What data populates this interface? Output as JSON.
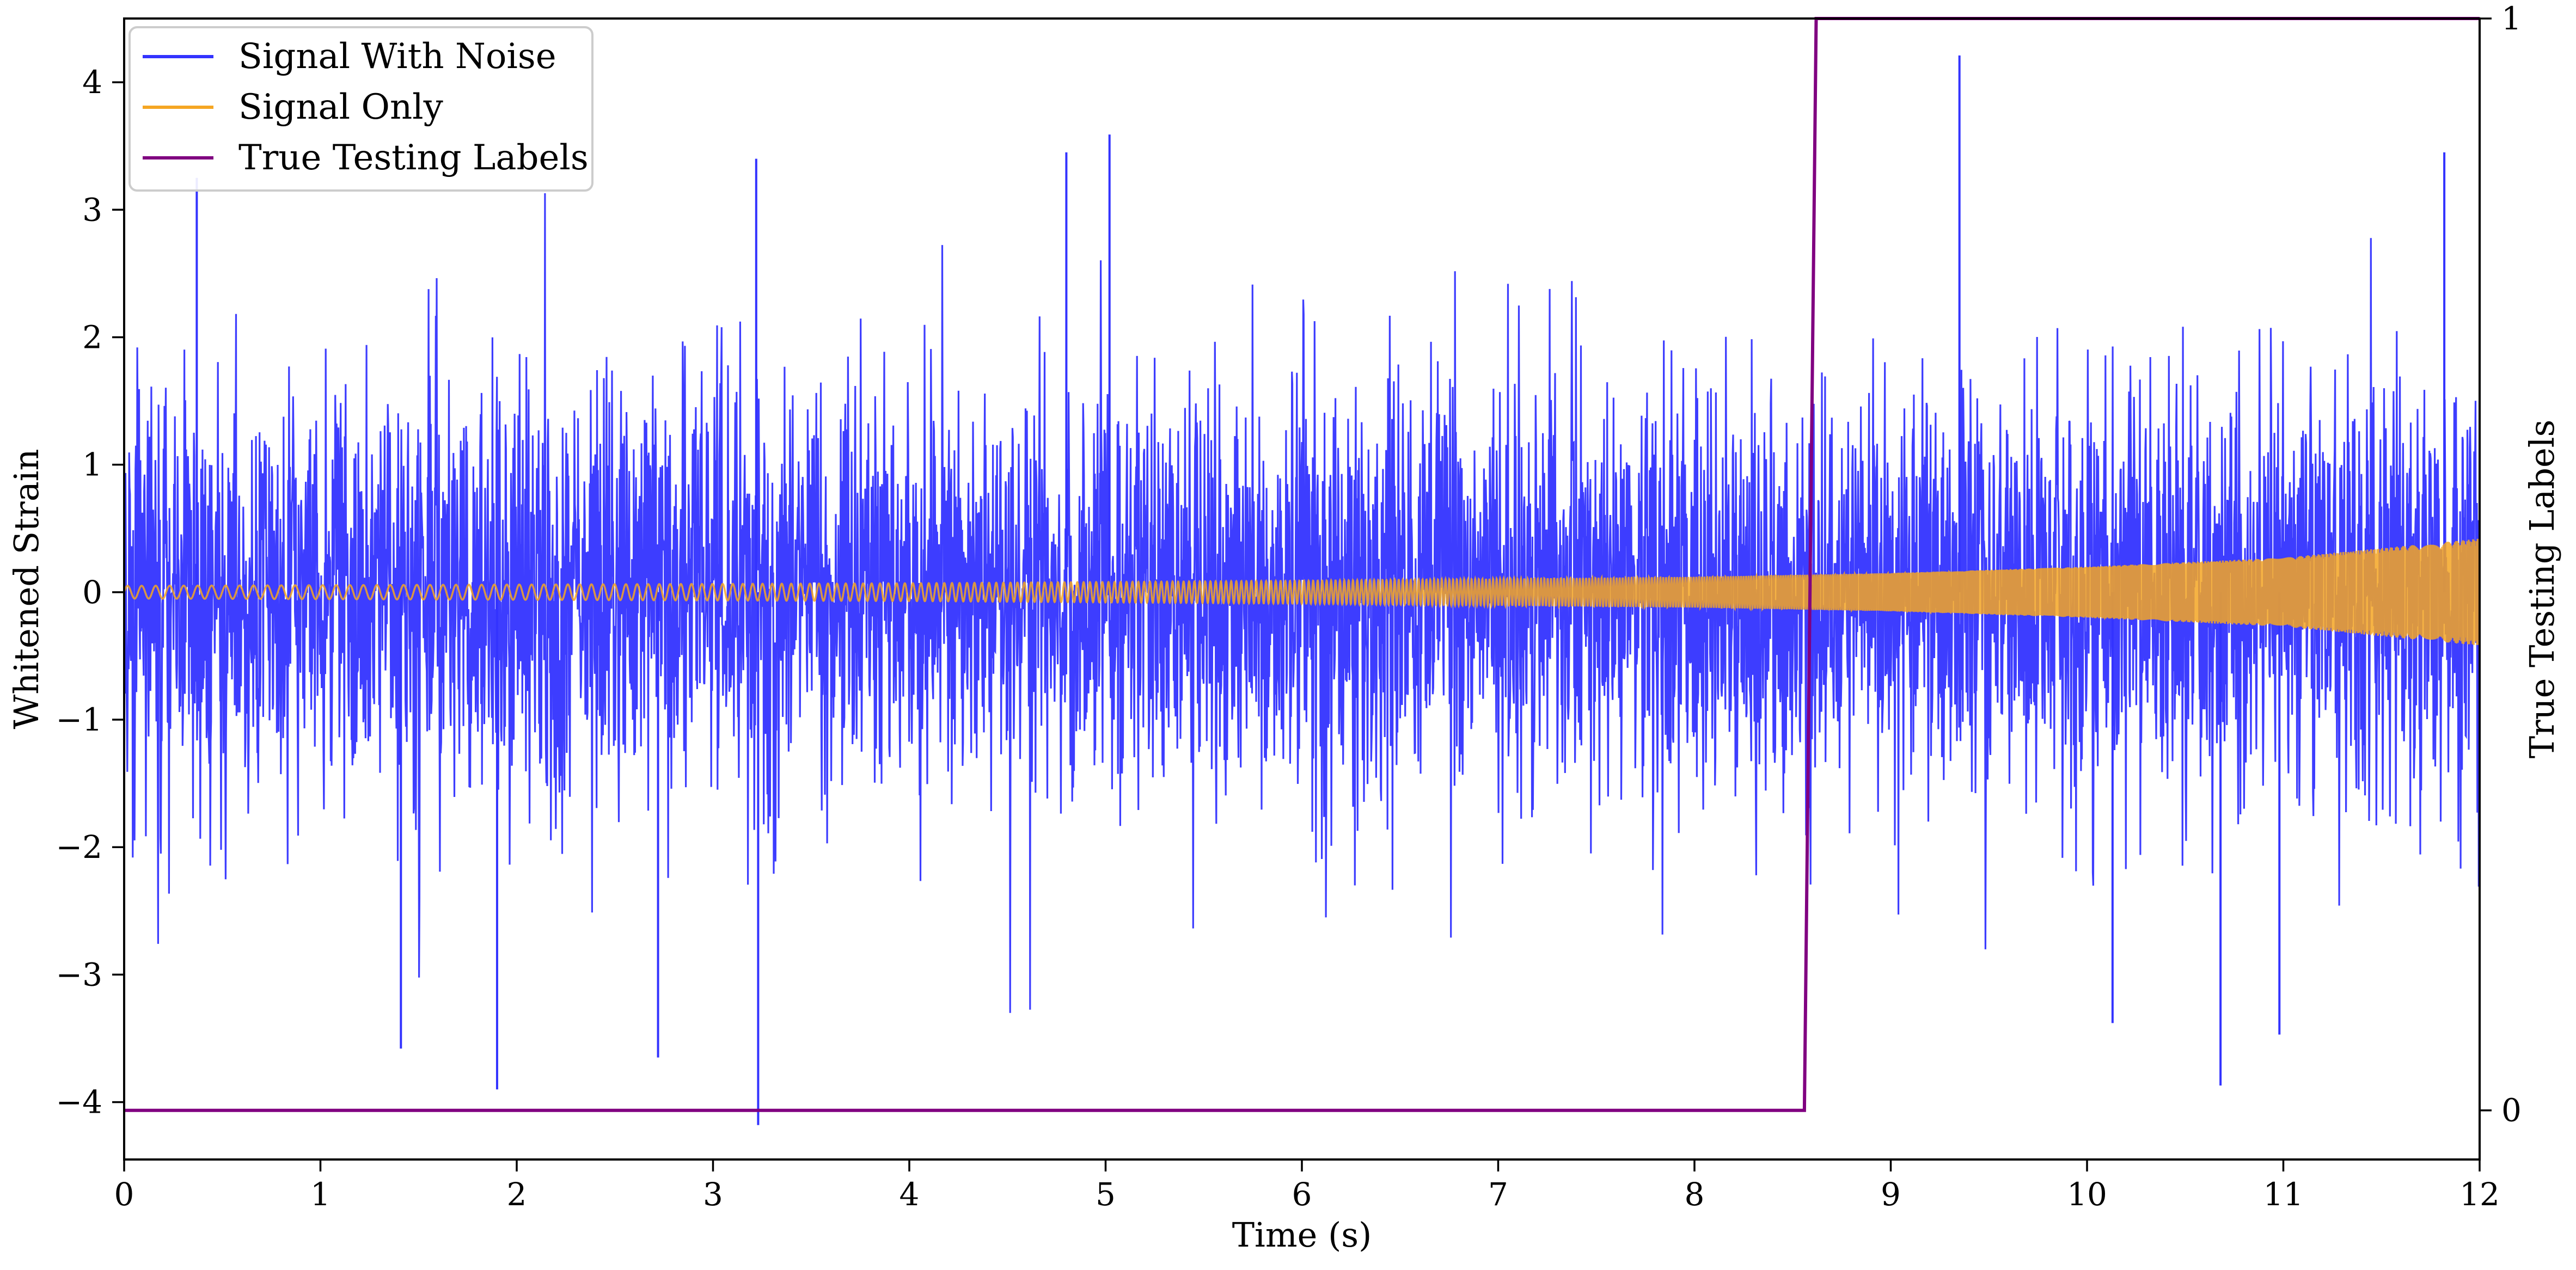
{
  "chart_data": {
    "type": "line",
    "title": "",
    "xlabel": "Time (s)",
    "ylabel": "Whitened Strain",
    "y2label": "True Testing Labels",
    "xlim": [
      0,
      12
    ],
    "ylim": [
      -4.45,
      4.5
    ],
    "y2lim": [
      -0.045,
      1.0
    ],
    "x_ticks": [
      0,
      1,
      2,
      3,
      4,
      5,
      6,
      7,
      8,
      9,
      10,
      11,
      12
    ],
    "y_ticks": [
      -4,
      -3,
      -2,
      -1,
      0,
      1,
      2,
      3,
      4
    ],
    "y_tick_labels": [
      "−4",
      "−3",
      "−2",
      "−1",
      "0",
      "1",
      "2",
      "3",
      "4"
    ],
    "y2_ticks": [
      0,
      1
    ],
    "grid": false,
    "legend_position": "upper-left",
    "series": [
      {
        "name": "Signal With Noise",
        "axis": "left",
        "color": "#3333ff",
        "description_values": {
          "noise_std": 0.8,
          "extreme_spikes": [
            {
              "x": 0.37,
              "y": 3.25
            },
            {
              "x": 1.41,
              "y": -3.58
            },
            {
              "x": 1.9,
              "y": -3.9
            },
            {
              "x": 2.72,
              "y": -3.65
            },
            {
              "x": 3.22,
              "y": 3.4
            },
            {
              "x": 3.23,
              "y": -4.18
            },
            {
              "x": 4.8,
              "y": 3.45
            },
            {
              "x": 5.02,
              "y": 3.59
            },
            {
              "x": 9.35,
              "y": 4.21
            },
            {
              "x": 10.13,
              "y": -3.38
            },
            {
              "x": 10.68,
              "y": -3.87
            },
            {
              "x": 10.98,
              "y": -3.47
            },
            {
              "x": 11.82,
              "y": 3.45
            }
          ]
        }
      },
      {
        "name": "Signal Only",
        "axis": "left",
        "color": "#f5a623",
        "envelope": [
          {
            "x": 0,
            "amp": 0.05
          },
          {
            "x": 4,
            "amp": 0.07
          },
          {
            "x": 6,
            "amp": 0.09
          },
          {
            "x": 8,
            "amp": 0.12
          },
          {
            "x": 9,
            "amp": 0.15
          },
          {
            "x": 10,
            "amp": 0.2
          },
          {
            "x": 11,
            "amp": 0.27
          },
          {
            "x": 12,
            "amp": 0.42
          }
        ]
      },
      {
        "name": "True Testing Labels",
        "axis": "right",
        "color": "#800080",
        "x": [
          0,
          8.56,
          8.62,
          12
        ],
        "y": [
          0,
          0,
          1,
          1
        ]
      }
    ]
  }
}
